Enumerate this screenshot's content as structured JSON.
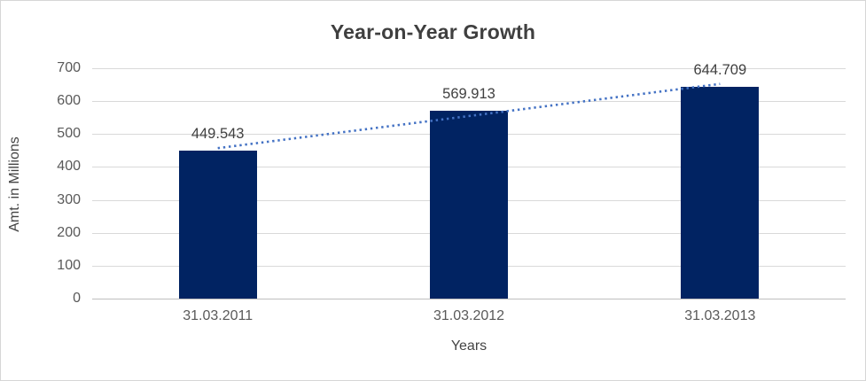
{
  "chart_data": {
    "type": "bar",
    "title": "Year-on-Year Growth",
    "xlabel": "Years",
    "ylabel": "Amt. in Millions",
    "categories": [
      "31.03.2011",
      "31.03.2012",
      "31.03.2013"
    ],
    "values": [
      449.543,
      569.913,
      644.709
    ],
    "data_labels": [
      "449.543",
      "569.913",
      "644.709"
    ],
    "ylim": [
      0,
      700
    ],
    "ytick_step": 100,
    "ytick_labels": [
      "0",
      "100",
      "200",
      "300",
      "400",
      "500",
      "600",
      "700"
    ],
    "grid": true,
    "legend_position": "none",
    "bar_color": "#012362",
    "trendline": {
      "type": "linear",
      "style": "dotted",
      "color": "#4472c4"
    },
    "gridline_color": "#d9d9d9",
    "axis_line_color": "#bfbfbf",
    "title_color": "#3f3f3f",
    "tick_label_color": "#595959"
  }
}
